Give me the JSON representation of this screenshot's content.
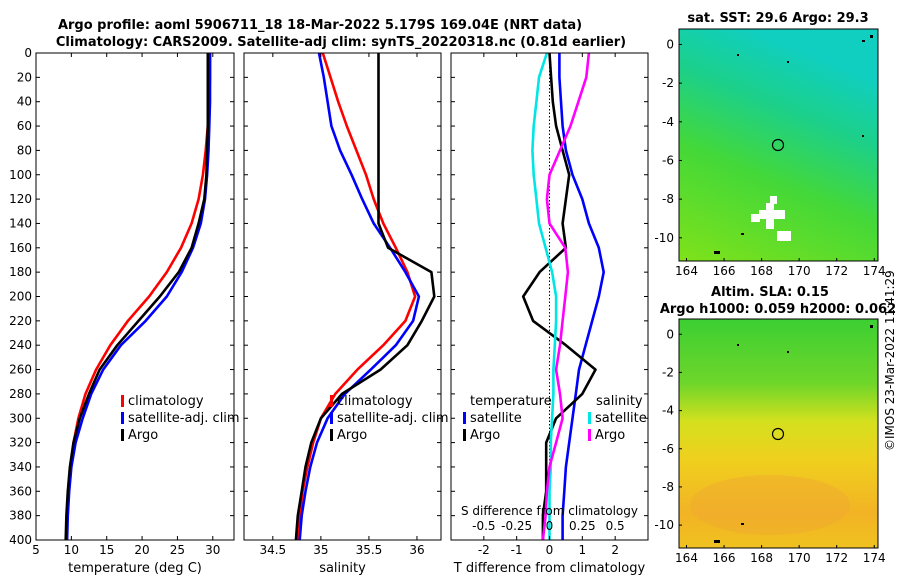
{
  "titles": {
    "line1": "Argo profile: aoml 5906711_18 18-Mar-2022 5.179S 169.04E (NRT data)",
    "line2": "Climatology: CARS2009. Satellite-adj clim: synTS_20220318.nc (0.81d earlier)",
    "map_sst": "sat. SST: 29.6 Argo: 29.3",
    "map_sla_1": "Altim. SLA: 0.15",
    "map_sla_2": "Argo h1000: 0.059 h2000: 0.062"
  },
  "credit": "©IMOS 23-Mar-2022 11:41:29",
  "colors": {
    "climatology": "#ff0000",
    "satellite": "#0000ff",
    "argo": "#000000",
    "sat_t_diff": "#00e5e5",
    "sat_s_diff": "#ff00ff",
    "clim_s_diff": "#ff00ff"
  },
  "legends": {
    "temp": [
      "climatology",
      "satellite-adj. clim",
      "Argo"
    ],
    "sal": [
      "climatology",
      "satellite-adj. clim",
      "Argo"
    ],
    "diff_temp_title": "temperature",
    "diff_sal_title": "salinity",
    "diff_temp": [
      "satellite",
      "Argo"
    ],
    "diff_sal": [
      "satellite",
      "Argo"
    ]
  },
  "chart_data": [
    {
      "type": "line",
      "title": "",
      "xlabel": "temperature (deg C)",
      "ylabel": "",
      "xlim": [
        5,
        33
      ],
      "ylim": [
        400,
        0
      ],
      "xticks": [
        5,
        10,
        15,
        20,
        25,
        30
      ],
      "yticks": [
        0,
        20,
        40,
        60,
        80,
        100,
        120,
        140,
        160,
        180,
        200,
        220,
        240,
        260,
        280,
        300,
        320,
        340,
        360,
        380,
        400
      ],
      "series": [
        {
          "name": "climatology",
          "color_key": "climatology",
          "x": [
            29.6,
            29.6,
            29.5,
            29.3,
            29.0,
            28.6,
            28.0,
            27.0,
            25.5,
            23.5,
            21.0,
            18.0,
            15.5,
            13.5,
            12.0,
            11.0,
            10.3,
            9.9,
            9.6,
            9.4,
            9.3
          ],
          "y": [
            0,
            20,
            40,
            60,
            80,
            100,
            120,
            140,
            160,
            180,
            200,
            220,
            240,
            260,
            280,
            300,
            320,
            340,
            360,
            380,
            400
          ]
        },
        {
          "name": "satellite-adj. clim",
          "color_key": "satellite",
          "x": [
            29.6,
            29.6,
            29.6,
            29.5,
            29.4,
            29.2,
            28.9,
            28.3,
            27.2,
            25.6,
            23.5,
            20.5,
            17.0,
            14.5,
            12.8,
            11.6,
            10.6,
            10.0,
            9.7,
            9.5,
            9.4
          ],
          "y": [
            0,
            20,
            40,
            60,
            80,
            100,
            120,
            140,
            160,
            180,
            200,
            220,
            240,
            260,
            280,
            300,
            320,
            340,
            360,
            380,
            400
          ]
        },
        {
          "name": "Argo",
          "color_key": "argo",
          "x": [
            29.3,
            29.3,
            29.3,
            29.3,
            29.2,
            29.1,
            28.8,
            28.0,
            27.0,
            25.2,
            22.5,
            19.5,
            16.5,
            14.0,
            12.5,
            11.2,
            10.3,
            9.8,
            9.5,
            9.3,
            9.2
          ],
          "y": [
            0,
            20,
            40,
            60,
            80,
            100,
            120,
            140,
            160,
            180,
            200,
            220,
            240,
            260,
            280,
            300,
            320,
            340,
            360,
            380,
            400
          ]
        }
      ]
    },
    {
      "type": "line",
      "xlabel": "salinity",
      "xlim": [
        34.2,
        36.25
      ],
      "ylim": [
        400,
        0
      ],
      "xticks": [
        34.5,
        35,
        35.5,
        36
      ],
      "xticklabels": [
        "34.5",
        "35",
        "35.5",
        "36"
      ],
      "series": [
        {
          "name": "climatology",
          "color_key": "climatology",
          "x": [
            35.02,
            35.1,
            35.18,
            35.27,
            35.37,
            35.47,
            35.55,
            35.65,
            35.78,
            35.9,
            35.98,
            35.88,
            35.65,
            35.38,
            35.15,
            35.0,
            34.92,
            34.86,
            34.81,
            34.78,
            34.76
          ],
          "y": [
            0,
            20,
            40,
            60,
            80,
            100,
            120,
            140,
            160,
            180,
            200,
            220,
            240,
            260,
            280,
            300,
            320,
            340,
            360,
            380,
            400
          ]
        },
        {
          "name": "satellite-adj. clim",
          "color_key": "satellite",
          "x": [
            34.98,
            35.03,
            35.07,
            35.11,
            35.2,
            35.32,
            35.43,
            35.55,
            35.72,
            35.88,
            36.02,
            35.96,
            35.78,
            35.52,
            35.25,
            35.07,
            34.96,
            34.89,
            34.84,
            34.8,
            34.78
          ],
          "y": [
            0,
            20,
            40,
            60,
            80,
            100,
            120,
            140,
            160,
            180,
            200,
            220,
            240,
            260,
            280,
            300,
            320,
            340,
            360,
            380,
            400
          ]
        },
        {
          "name": "Argo",
          "color_key": "argo",
          "x": [
            35.6,
            35.6,
            35.6,
            35.6,
            35.6,
            35.6,
            35.6,
            35.6,
            35.7,
            36.15,
            36.18,
            36.05,
            35.9,
            35.62,
            35.22,
            35.0,
            34.9,
            34.84,
            34.8,
            34.76,
            34.74
          ],
          "y": [
            0,
            20,
            40,
            60,
            80,
            100,
            120,
            140,
            160,
            180,
            200,
            220,
            240,
            260,
            280,
            300,
            320,
            340,
            360,
            380,
            400
          ]
        }
      ]
    },
    {
      "type": "line",
      "xlabel": "T difference from climatology",
      "xlim": [
        -3,
        3
      ],
      "ylim": [
        400,
        0
      ],
      "xticks": [
        -2,
        -1,
        0,
        1,
        2
      ],
      "top_label": "S difference from climatology",
      "top_xlim": [
        -0.75,
        0.75
      ],
      "top_xticks": [
        -0.5,
        -0.25,
        0,
        0.25,
        0.5
      ],
      "top_xticklabels": [
        "-0.5",
        "-0.25",
        "0",
        "0.25",
        "0.5"
      ],
      "series": [
        {
          "name": "T satellite",
          "color_key": "satellite",
          "axis": "T",
          "x": [
            0.3,
            0.3,
            0.35,
            0.4,
            0.5,
            0.7,
            1.0,
            1.2,
            1.5,
            1.65,
            1.5,
            1.3,
            1.1,
            0.9,
            0.8,
            0.7,
            0.6,
            0.5,
            0.45,
            0.4,
            0.4
          ],
          "y": [
            0,
            20,
            40,
            60,
            80,
            100,
            120,
            140,
            160,
            180,
            200,
            220,
            240,
            260,
            280,
            300,
            320,
            340,
            360,
            380,
            400
          ]
        },
        {
          "name": "T Argo",
          "color_key": "argo",
          "axis": "T",
          "x": [
            0.0,
            0.05,
            0.1,
            0.2,
            0.4,
            0.6,
            0.5,
            0.4,
            0.5,
            -0.3,
            -0.8,
            -0.5,
            0.5,
            1.4,
            1.0,
            0.2,
            -0.1,
            -0.1,
            -0.1,
            -0.2,
            -0.2
          ],
          "y": [
            0,
            20,
            40,
            60,
            80,
            100,
            120,
            140,
            160,
            180,
            200,
            220,
            240,
            260,
            280,
            300,
            320,
            340,
            360,
            380,
            400
          ]
        },
        {
          "name": "S satellite",
          "color_key": "sat_t_diff",
          "axis": "S",
          "x": [
            -0.02,
            -0.08,
            -0.1,
            -0.12,
            -0.13,
            -0.12,
            -0.1,
            -0.08,
            -0.03,
            0.02,
            0.05,
            0.05,
            0.04,
            0.03,
            0.03,
            0.02,
            0.01,
            0.01,
            0.0,
            0.0,
            0.0
          ],
          "y": [
            0,
            20,
            40,
            60,
            80,
            100,
            120,
            140,
            160,
            180,
            200,
            220,
            240,
            260,
            280,
            300,
            320,
            340,
            360,
            380,
            400
          ]
        },
        {
          "name": "S Argo",
          "color_key": "sat_s_diff",
          "axis": "S",
          "x": [
            0.3,
            0.28,
            0.22,
            0.16,
            0.08,
            0.0,
            -0.02,
            0.0,
            0.12,
            0.14,
            0.12,
            0.1,
            0.08,
            0.05,
            0.08,
            0.1,
            0.05,
            0.0,
            -0.02,
            -0.03,
            -0.05
          ],
          "y": [
            0,
            20,
            40,
            60,
            80,
            100,
            120,
            140,
            160,
            180,
            200,
            220,
            240,
            260,
            280,
            300,
            320,
            340,
            360,
            380,
            400
          ]
        }
      ]
    },
    {
      "type": "heatmap",
      "title": "sat. SST: 29.6 Argo: 29.3",
      "xlim": [
        163.6,
        174.2
      ],
      "ylim": [
        -11.2,
        0.8
      ],
      "xticks": [
        164,
        166,
        168,
        170,
        172,
        174
      ],
      "yticks": [
        0,
        -2,
        -4,
        -6,
        -8,
        -10
      ],
      "marker": {
        "lon": 169.04,
        "lat": -5.179
      }
    },
    {
      "type": "heatmap",
      "title": "Altim. SLA: 0.15",
      "xlim": [
        163.6,
        174.2
      ],
      "ylim": [
        -11.2,
        0.8
      ],
      "xticks": [
        164,
        166,
        168,
        170,
        172,
        174
      ],
      "yticks": [
        0,
        -2,
        -4,
        -6,
        -8,
        -10
      ],
      "marker": {
        "lon": 169.04,
        "lat": -5.179
      }
    }
  ]
}
